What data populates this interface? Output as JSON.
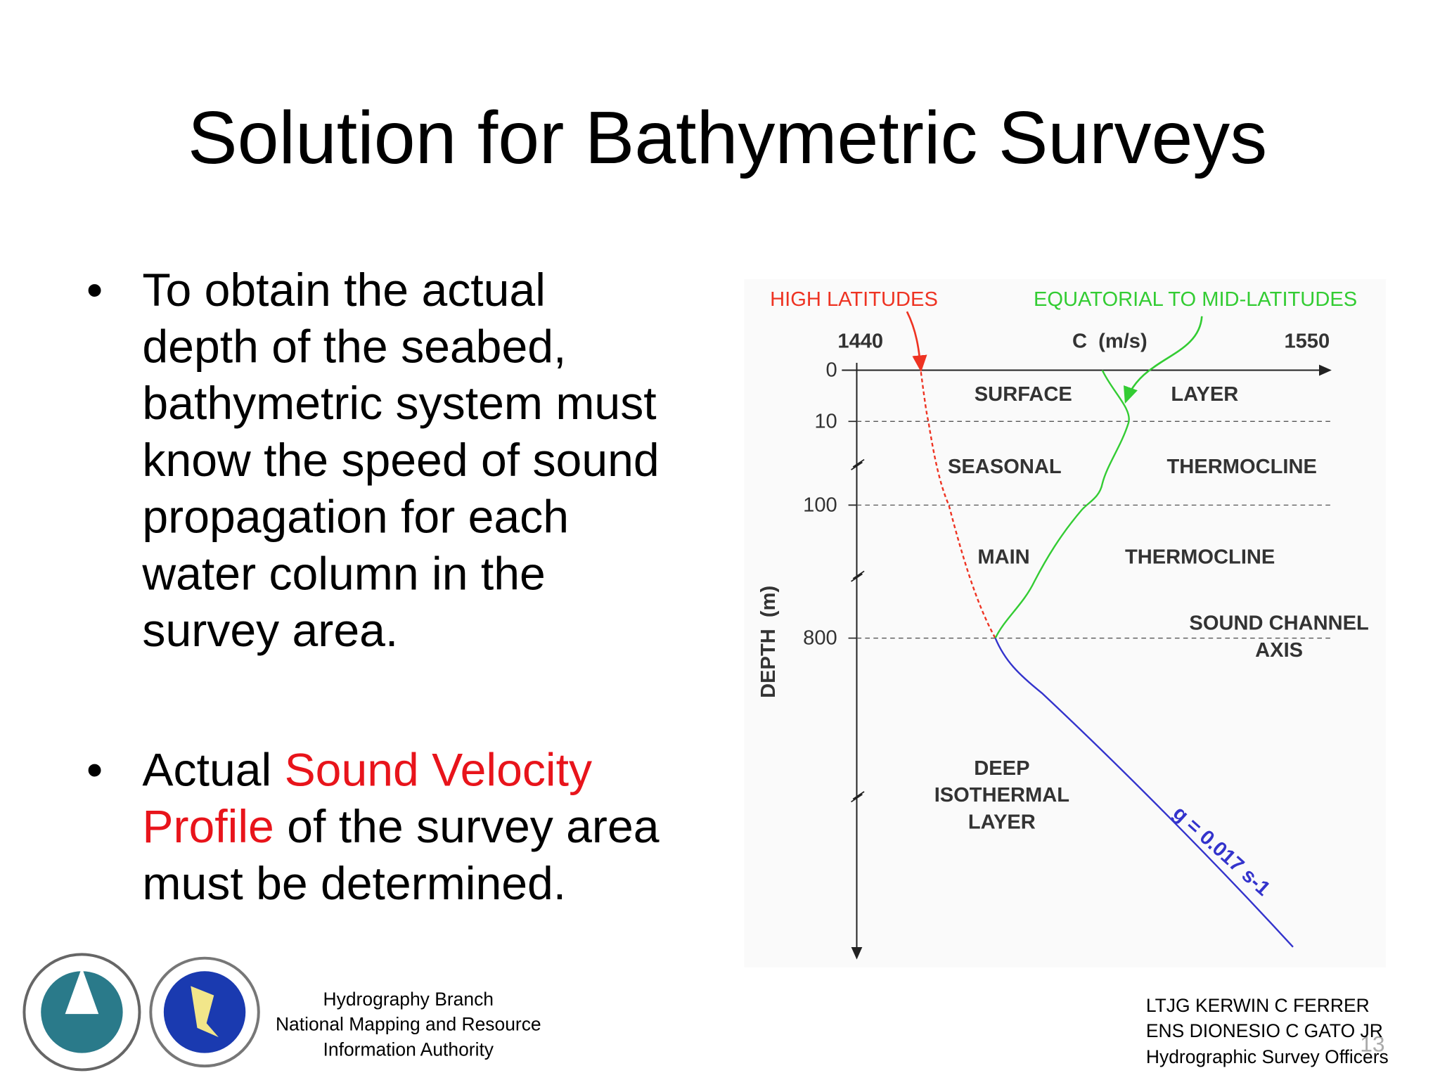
{
  "title": "Solution for Bathymetric Surveys",
  "bullets": [
    {
      "lines": [
        "To obtain the actual",
        "depth of the seabed,",
        "bathymetric system must",
        "know the speed of sound",
        "propagation for each",
        "water column in the",
        "survey area."
      ]
    },
    {
      "lines": [
        [
          "Actual ",
          "Sound Velocity"
        ],
        [
          "Profile",
          " of the survey area"
        ],
        [
          "must be determined."
        ]
      ]
    }
  ],
  "diagram": {
    "high_latitudes": "HIGH LATITUDES",
    "equatorial": "EQUATORIAL TO MID-LATITUDES",
    "x_min": "1440",
    "x_label": "C  (m/s)",
    "x_max": "1550",
    "y_label": "DEPTH  (m)",
    "depth_ticks": [
      "0",
      "10",
      "100",
      "800"
    ],
    "layers": {
      "surface": [
        "SURFACE",
        "LAYER"
      ],
      "seasonal": [
        "SEASONAL",
        "THERMOCLINE"
      ],
      "main": [
        "MAIN",
        "THERMOCLINE"
      ],
      "sound_channel": [
        "SOUND CHANNEL",
        "AXIS"
      ],
      "deep": [
        "DEEP",
        "ISOTHERMAL",
        "LAYER"
      ]
    },
    "gradient": "g = 0.017 s-1"
  },
  "footer": {
    "center": [
      "Hydrography Branch",
      "National Mapping and Resource",
      "Information Authority"
    ],
    "right": [
      "LTJG KERWIN C FERRER",
      "ENS DIONESIO C GATO JR",
      "Hydrographic Survey Officers"
    ],
    "page_number": "13"
  }
}
